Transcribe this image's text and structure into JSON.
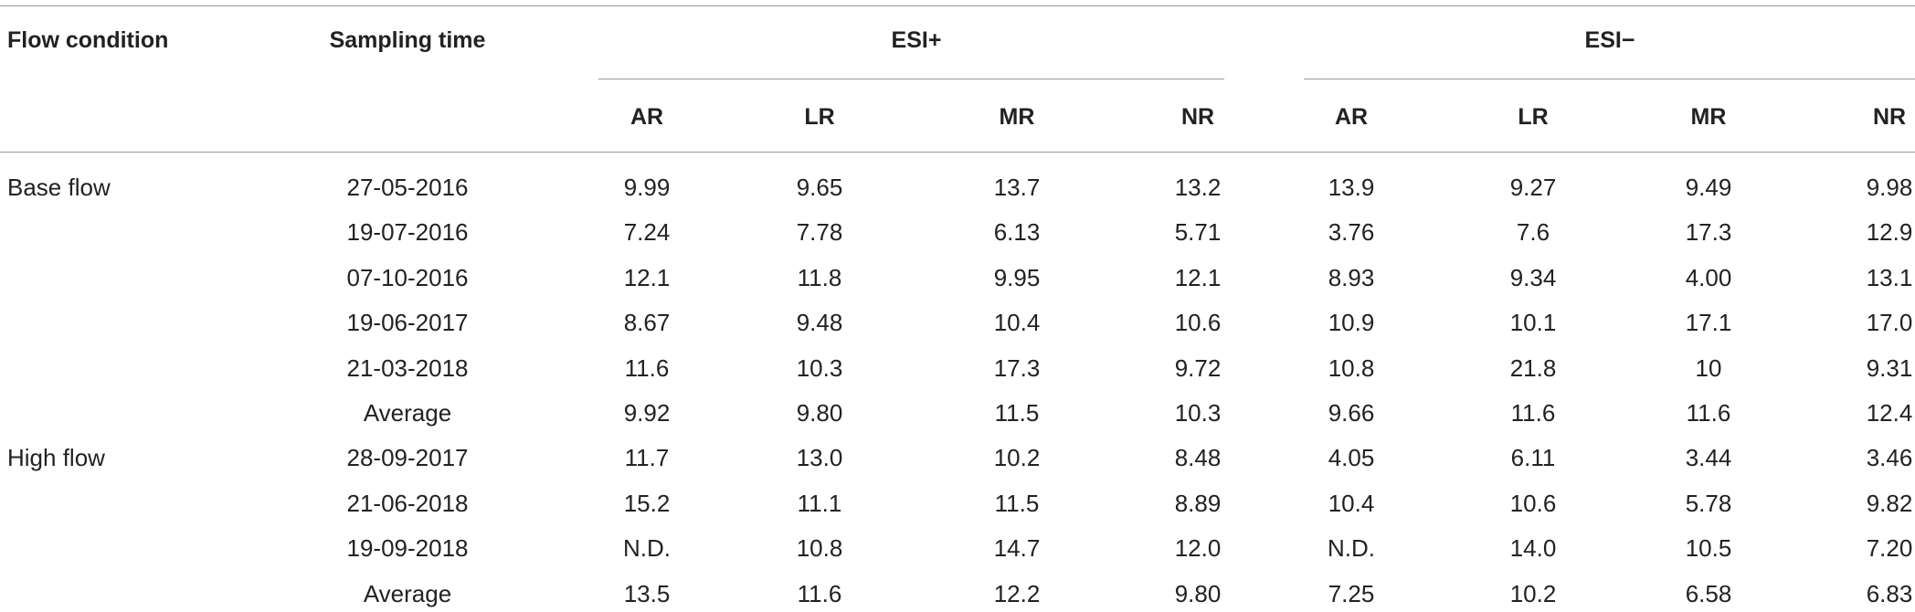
{
  "header": {
    "flow_condition": "Flow condition",
    "sampling_time": "Sampling time",
    "esi_pos": "ESI+",
    "esi_neg": "ESI−",
    "sub": [
      "AR",
      "LR",
      "MR",
      "NR",
      "AR",
      "LR",
      "MR",
      "NR"
    ]
  },
  "rows": [
    {
      "condition": "Base flow",
      "time": "27-05-2016",
      "values": [
        "9.99",
        "9.65",
        "13.7",
        "13.2",
        "13.9",
        "9.27",
        "9.49",
        "9.98"
      ]
    },
    {
      "condition": "",
      "time": "19-07-2016",
      "values": [
        "7.24",
        "7.78",
        "6.13",
        "5.71",
        "3.76",
        "7.6",
        "17.3",
        "12.9"
      ]
    },
    {
      "condition": "",
      "time": "07-10-2016",
      "values": [
        "12.1",
        "11.8",
        "9.95",
        "12.1",
        "8.93",
        "9.34",
        "4.00",
        "13.1"
      ]
    },
    {
      "condition": "",
      "time": "19-06-2017",
      "values": [
        "8.67",
        "9.48",
        "10.4",
        "10.6",
        "10.9",
        "10.1",
        "17.1",
        "17.0"
      ]
    },
    {
      "condition": "",
      "time": "21-03-2018",
      "values": [
        "11.6",
        "10.3",
        "17.3",
        "9.72",
        "10.8",
        "21.8",
        "10",
        "9.31"
      ]
    },
    {
      "condition": "",
      "time": "Average",
      "values": [
        "9.92",
        "9.80",
        "11.5",
        "10.3",
        "9.66",
        "11.6",
        "11.6",
        "12.4"
      ]
    },
    {
      "condition": "High flow",
      "time": "28-09-2017",
      "values": [
        "11.7",
        "13.0",
        "10.2",
        "8.48",
        "4.05",
        "6.11",
        "3.44",
        "3.46"
      ]
    },
    {
      "condition": "",
      "time": "21-06-2018",
      "values": [
        "15.2",
        "11.1",
        "11.5",
        "8.89",
        "10.4",
        "10.6",
        "5.78",
        "9.82"
      ]
    },
    {
      "condition": "",
      "time": "19-09-2018",
      "values": [
        "N.D.",
        "10.8",
        "14.7",
        "12.0",
        "N.D.",
        "14.0",
        "10.5",
        "7.20"
      ]
    },
    {
      "condition": "",
      "time": "Average",
      "values": [
        "13.5",
        "11.6",
        "12.2",
        "9.80",
        "7.25",
        "10.2",
        "6.58",
        "6.83"
      ]
    }
  ]
}
